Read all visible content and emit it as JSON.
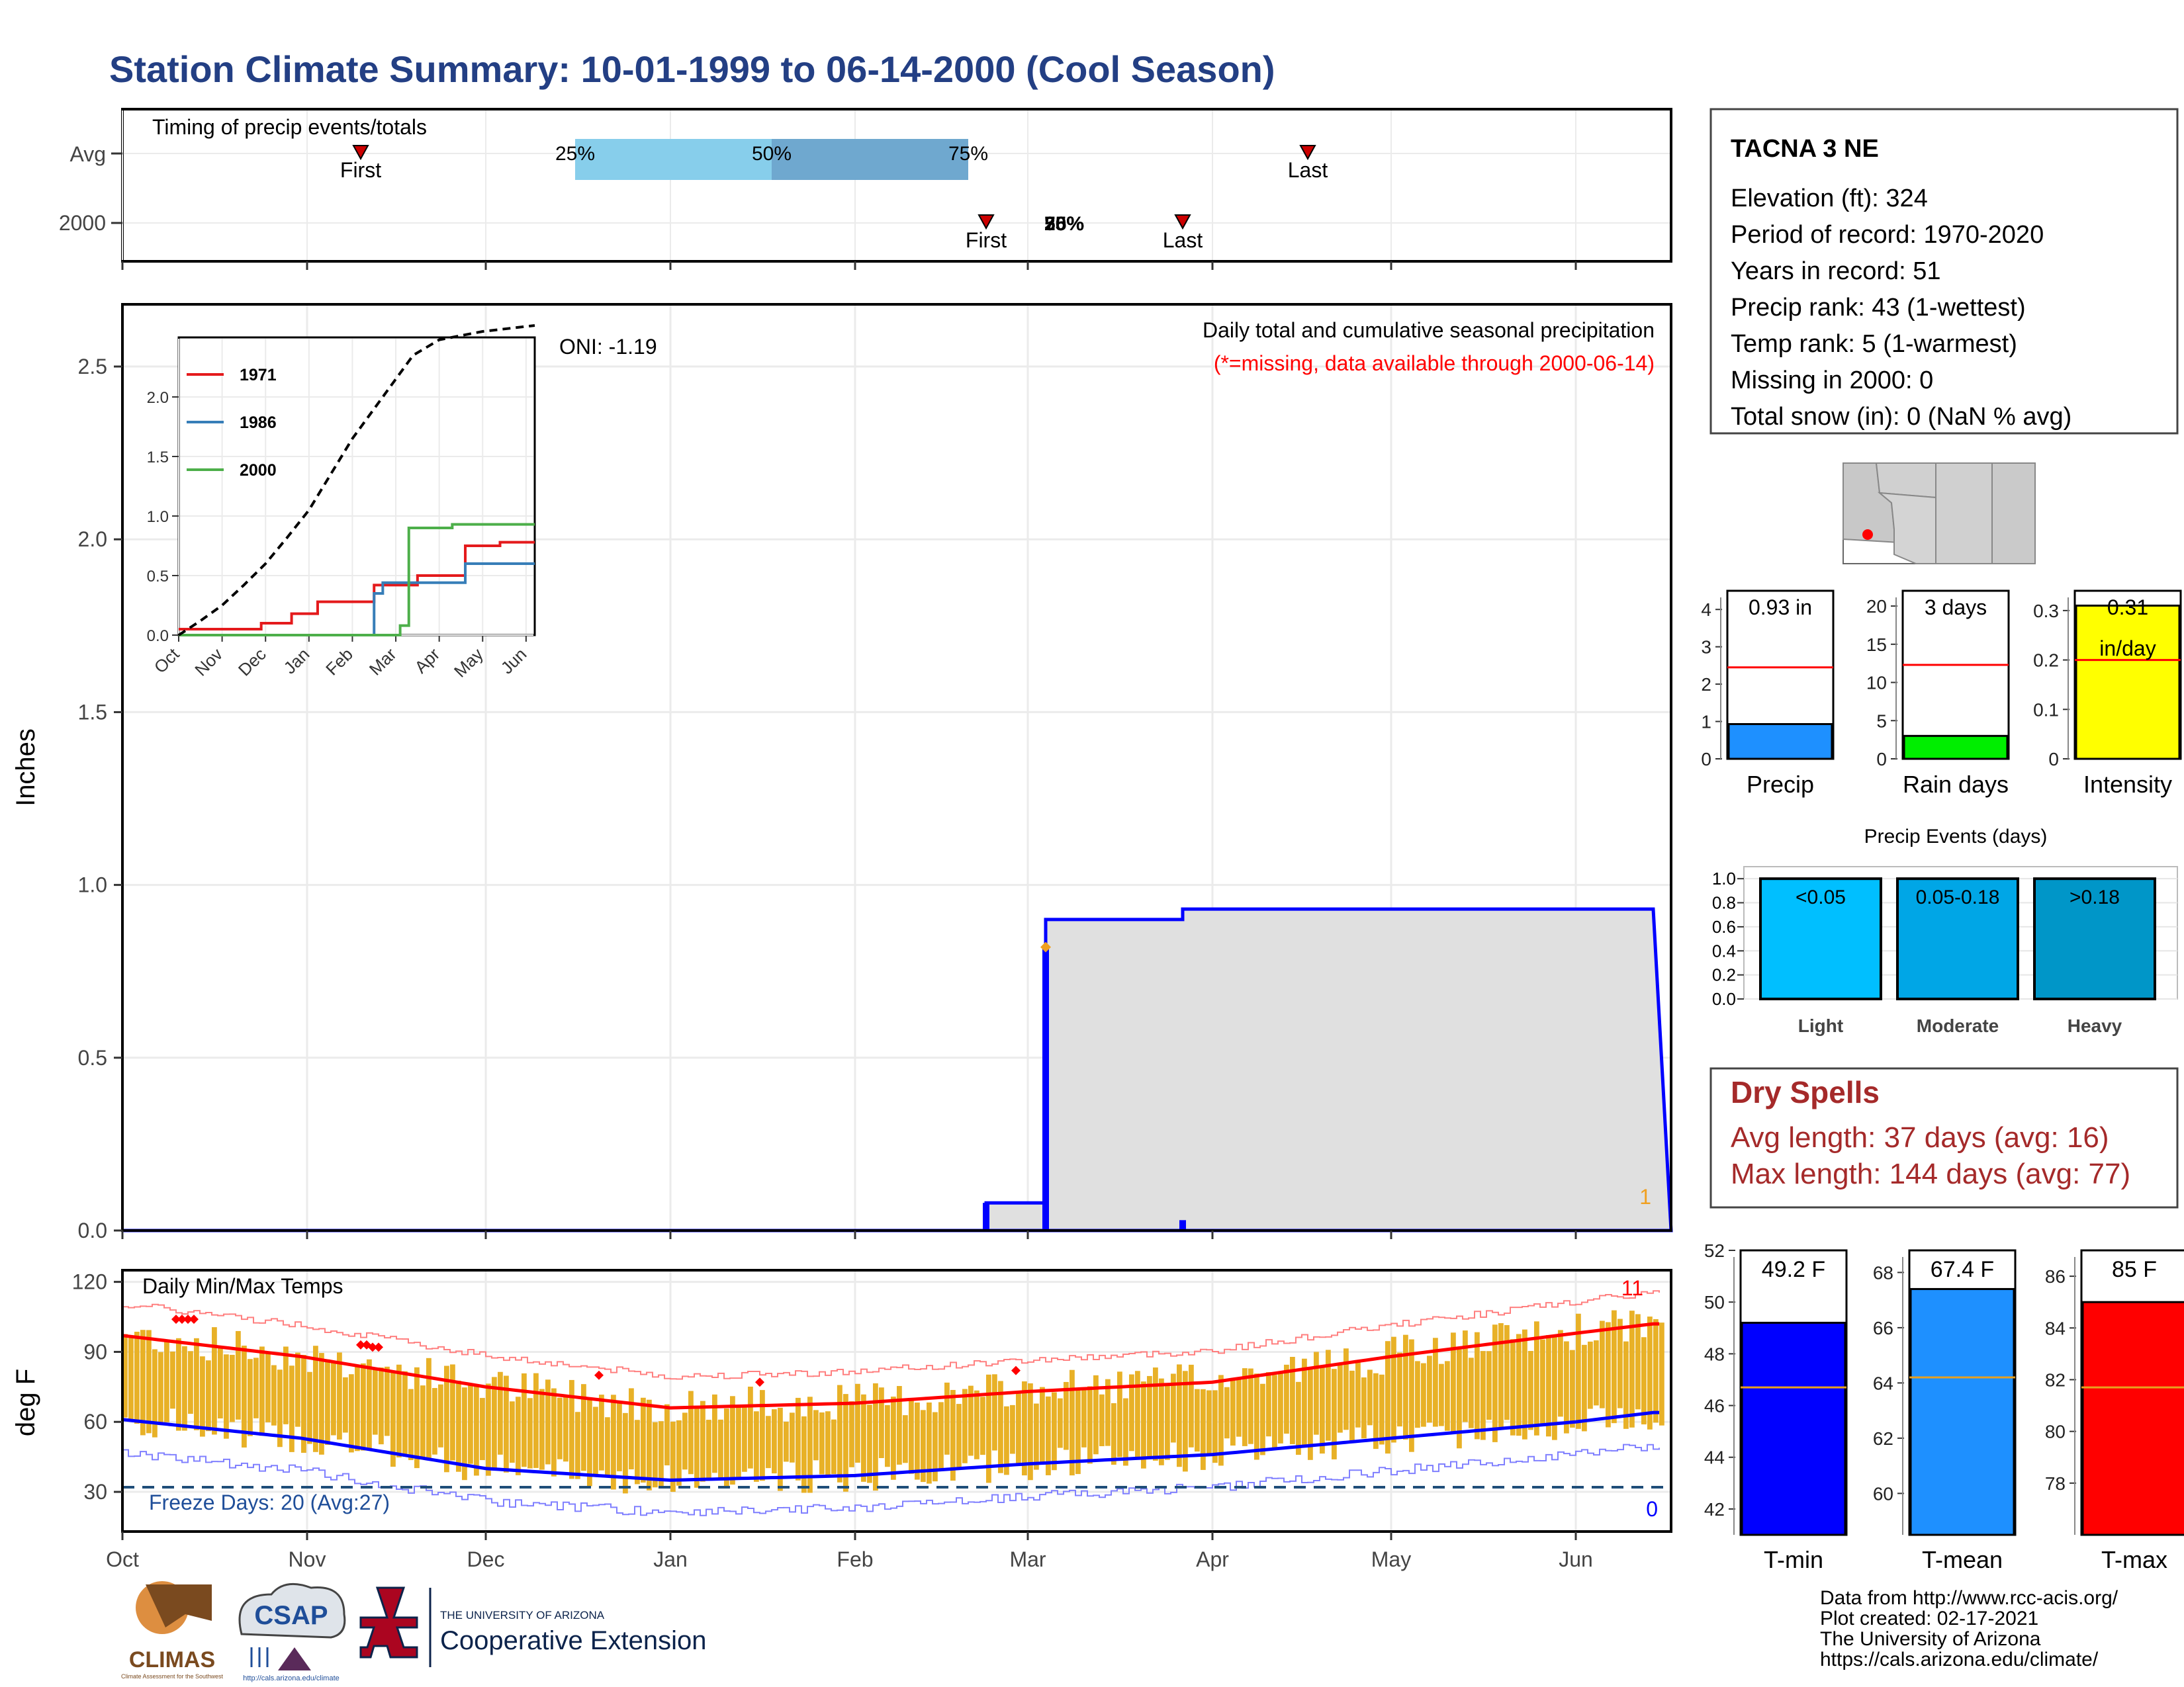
{
  "title": "Station Climate Summary: 10-01-1999 to 06-14-2000 (Cool Season)",
  "colors": {
    "title": "#233f84",
    "precip_fill": "#8b5a00",
    "avg_fill": "#e0e0e0",
    "avg_line": "#0000ff",
    "temp_bars": "#e8b127",
    "tmax_avg": "#ff0000",
    "tmin_avg": "#0000ff",
    "dry_spells": "#a52a2a",
    "freeze_text": "#1f4e99"
  },
  "timing_panel": {
    "label": "Timing of precip events/totals",
    "rows": [
      "Avg",
      "2000"
    ],
    "avg": {
      "first_label": "First",
      "last_label": "Last",
      "p25": "25%",
      "p50": "50%",
      "p75": "75%",
      "first_date": "1999-11-10",
      "p25_date": "1999-12-16",
      "p50_date": "2000-01-18",
      "p75_date": "2000-02-20",
      "last_date": "2000-04-17"
    },
    "season_2000": {
      "first_label": "First",
      "last_label": "Last",
      "p25": "25%",
      "p50": "50%",
      "p75": "75%",
      "first_date": "2000-02-23",
      "pct_date": "2000-03-04",
      "last_date": "2000-03-27"
    }
  },
  "precip_panel": {
    "ylabel": "Inches",
    "subtitle": "Daily total and cumulative seasonal precipitation",
    "missing_note": "(*=missing, data available through 2000-06-14)",
    "oni": "ONI: -1.19",
    "missing_count": "1",
    "yticks": [
      "0.0",
      "0.5",
      "1.0",
      "1.5",
      "2.0",
      "2.5"
    ]
  },
  "chart_data": [
    {
      "type": "area",
      "name": "cumulative_precip",
      "title": "Daily total and cumulative seasonal precipitation",
      "ylabel": "Inches",
      "ylim": [
        0,
        2.68
      ],
      "xlim": [
        "1999-10-01",
        "2000-06-14"
      ],
      "series": [
        {
          "name": "avg cumulative",
          "points": [
            [
              "1999-10-01",
              0.0
            ],
            [
              "1999-10-05",
              0.03
            ],
            [
              "1999-10-10",
              0.07
            ],
            [
              "1999-10-17",
              0.1
            ],
            [
              "1999-10-24",
              0.13
            ],
            [
              "1999-10-31",
              0.18
            ],
            [
              "1999-11-05",
              0.27
            ],
            [
              "1999-11-12",
              0.29
            ],
            [
              "1999-11-20",
              0.3
            ],
            [
              "1999-11-30",
              0.33
            ],
            [
              "1999-12-08",
              0.4
            ],
            [
              "1999-12-16",
              0.47
            ],
            [
              "1999-12-24",
              0.53
            ],
            [
              "1999-12-31",
              0.58
            ],
            [
              "2000-01-07",
              0.66
            ],
            [
              "2000-01-14",
              0.75
            ],
            [
              "2000-01-21",
              0.84
            ],
            [
              "2000-01-28",
              0.95
            ],
            [
              "2000-02-04",
              1.06
            ],
            [
              "2000-02-11",
              1.18
            ],
            [
              "2000-02-18",
              1.32
            ],
            [
              "2000-02-25",
              1.45
            ],
            [
              "2000-03-04",
              1.6
            ],
            [
              "2000-03-11",
              1.76
            ],
            [
              "2000-03-18",
              1.92
            ],
            [
              "2000-03-25",
              2.06
            ],
            [
              "2000-04-01",
              2.18
            ],
            [
              "2000-04-08",
              2.26
            ],
            [
              "2000-04-15",
              2.31
            ],
            [
              "2000-04-22",
              2.34
            ],
            [
              "2000-05-01",
              2.36
            ],
            [
              "2000-05-15",
              2.38
            ],
            [
              "2000-06-01",
              2.43
            ],
            [
              "2000-06-14",
              2.45
            ]
          ]
        },
        {
          "name": "2000 cumulative",
          "points": [
            [
              "1999-10-01",
              0.0
            ],
            [
              "2000-02-23",
              0.0
            ],
            [
              "2000-02-23",
              0.08
            ],
            [
              "2000-03-04",
              0.08
            ],
            [
              "2000-03-04",
              0.9
            ],
            [
              "2000-03-27",
              0.9
            ],
            [
              "2000-03-27",
              0.93
            ],
            [
              "2000-06-14",
              0.93
            ]
          ]
        }
      ],
      "daily_bars": [
        [
          "2000-02-23",
          0.08
        ],
        [
          "2000-03-04",
          0.82
        ],
        [
          "2000-03-27",
          0.03
        ]
      ]
    },
    {
      "type": "line",
      "name": "inset_comparison_years",
      "x": [
        "Oct",
        "Nov",
        "Dec",
        "Jan",
        "Feb",
        "Mar",
        "Apr",
        "May",
        "Jun"
      ],
      "ylim": [
        0,
        2.5
      ],
      "yticks": [
        "0.0",
        "0.5",
        "1.0",
        "1.5",
        "2.0"
      ],
      "legend": [
        "1971",
        "1986",
        "2000"
      ],
      "series": [
        {
          "name": "1971",
          "color": "#e41a1c",
          "points": [
            [
              0,
              0.05
            ],
            [
              1,
              0.05
            ],
            [
              1.9,
              0.1
            ],
            [
              2.6,
              0.18
            ],
            [
              3.2,
              0.28
            ],
            [
              4.5,
              0.42
            ],
            [
              5.5,
              0.5
            ],
            [
              6.6,
              0.75
            ],
            [
              7.4,
              0.78
            ],
            [
              8.2,
              0.78
            ]
          ]
        },
        {
          "name": "1986",
          "color": "#377eb8",
          "points": [
            [
              0,
              0.0
            ],
            [
              4.25,
              0.0
            ],
            [
              4.5,
              0.35
            ],
            [
              4.7,
              0.44
            ],
            [
              6.6,
              0.6
            ],
            [
              8.2,
              0.6
            ]
          ]
        },
        {
          "name": "2000",
          "color": "#4daf4a",
          "points": [
            [
              0,
              0.0
            ],
            [
              5.0,
              0.0
            ],
            [
              5.1,
              0.08
            ],
            [
              5.3,
              0.9
            ],
            [
              6.3,
              0.93
            ],
            [
              8.2,
              0.93
            ]
          ]
        },
        {
          "name": "max",
          "color": "#000000",
          "points": [
            [
              0,
              0.0
            ],
            [
              0.5,
              0.12
            ],
            [
              1.0,
              0.25
            ],
            [
              1.5,
              0.42
            ],
            [
              2.0,
              0.6
            ],
            [
              2.5,
              0.82
            ],
            [
              3.0,
              1.05
            ],
            [
              3.5,
              1.35
            ],
            [
              4.0,
              1.65
            ],
            [
              4.5,
              1.9
            ],
            [
              5.0,
              2.15
            ],
            [
              5.4,
              2.35
            ],
            [
              6.0,
              2.48
            ],
            [
              7.0,
              2.55
            ],
            [
              8.2,
              2.6
            ]
          ]
        }
      ]
    },
    {
      "type": "bar",
      "name": "temps_daily",
      "title": "Daily Min/Max Temps",
      "ylabel": "deg F",
      "ylim": [
        13,
        125
      ],
      "yticks": [
        "30",
        "60",
        "90",
        "120"
      ],
      "freeze_line": 32,
      "max_above_count": "11",
      "min_below_count": "0",
      "freeze_text": "Freeze Days: 20 (Avg:27)",
      "avg_max_points": [
        [
          0,
          97
        ],
        [
          30,
          88
        ],
        [
          61,
          75
        ],
        [
          92,
          66
        ],
        [
          123,
          68
        ],
        [
          152,
          73
        ],
        [
          183,
          77
        ],
        [
          213,
          88
        ],
        [
          244,
          98
        ],
        [
          257,
          102
        ]
      ],
      "avg_min_points": [
        [
          0,
          61
        ],
        [
          30,
          53
        ],
        [
          61,
          40
        ],
        [
          92,
          35
        ],
        [
          123,
          37
        ],
        [
          152,
          42
        ],
        [
          183,
          46
        ],
        [
          213,
          53
        ],
        [
          244,
          60
        ],
        [
          257,
          64
        ]
      ]
    },
    {
      "type": "bar",
      "name": "summary_bars",
      "categories": [
        "Precip",
        "Rain days",
        "Intensity"
      ],
      "values": [
        0.93,
        3,
        0.31
      ],
      "avg_values": [
        2.45,
        12.3,
        0.2
      ],
      "labels": [
        "0.93 in",
        "3 days",
        "0.31 in/day"
      ]
    },
    {
      "type": "bar",
      "name": "precip_events",
      "title": "Precip Events (days)",
      "categories": [
        "Light",
        "Moderate",
        "Heavy"
      ],
      "bin_labels": [
        "<0.05",
        "0.05-0.18",
        ">0.18"
      ],
      "values": [
        1.0,
        1.0,
        1.0
      ]
    },
    {
      "type": "bar",
      "name": "temp_summary",
      "categories": [
        "T-min",
        "T-mean",
        "T-max"
      ],
      "values": [
        49.2,
        67.4,
        85.0
      ],
      "avg_values": [
        46.7,
        64.2,
        81.7
      ],
      "labels": [
        "49.2 F",
        "67.4 F",
        "85 F"
      ]
    }
  ],
  "x_months": [
    "Oct",
    "Nov",
    "Dec",
    "Jan",
    "Feb",
    "Mar",
    "Apr",
    "May",
    "Jun"
  ],
  "station_box": {
    "name": "TACNA 3 NE",
    "lines": [
      "Elevation (ft): 324",
      "Period of record: 1970-2020",
      "Years in record: 51",
      "Precip rank: 43 (1-wettest)",
      "Temp rank: 5 (1-warmest)",
      "Missing in 2000: 0",
      "Total snow (in): 0 (NaN % avg)"
    ]
  },
  "dry_spells": {
    "title": "Dry Spells",
    "avg": "Avg length: 37 days (avg: 16)",
    "max": "Max length: 144 days (avg: 77)"
  },
  "footer": {
    "lines": [
      "Data from http://www.rcc-acis.org/",
      "Plot created: 02-17-2021",
      "The University of Arizona",
      "https://cals.arizona.edu/climate/"
    ],
    "logos": {
      "climas": "CLIMAS",
      "climas_sub": "Climate Assessment for the Southwest",
      "csap": "CSAP",
      "csap_url": "http://cals.arizona.edu/climate",
      "ua_small": "THE UNIVERSITY OF ARIZONA",
      "coop": "Cooperative Extension"
    }
  }
}
